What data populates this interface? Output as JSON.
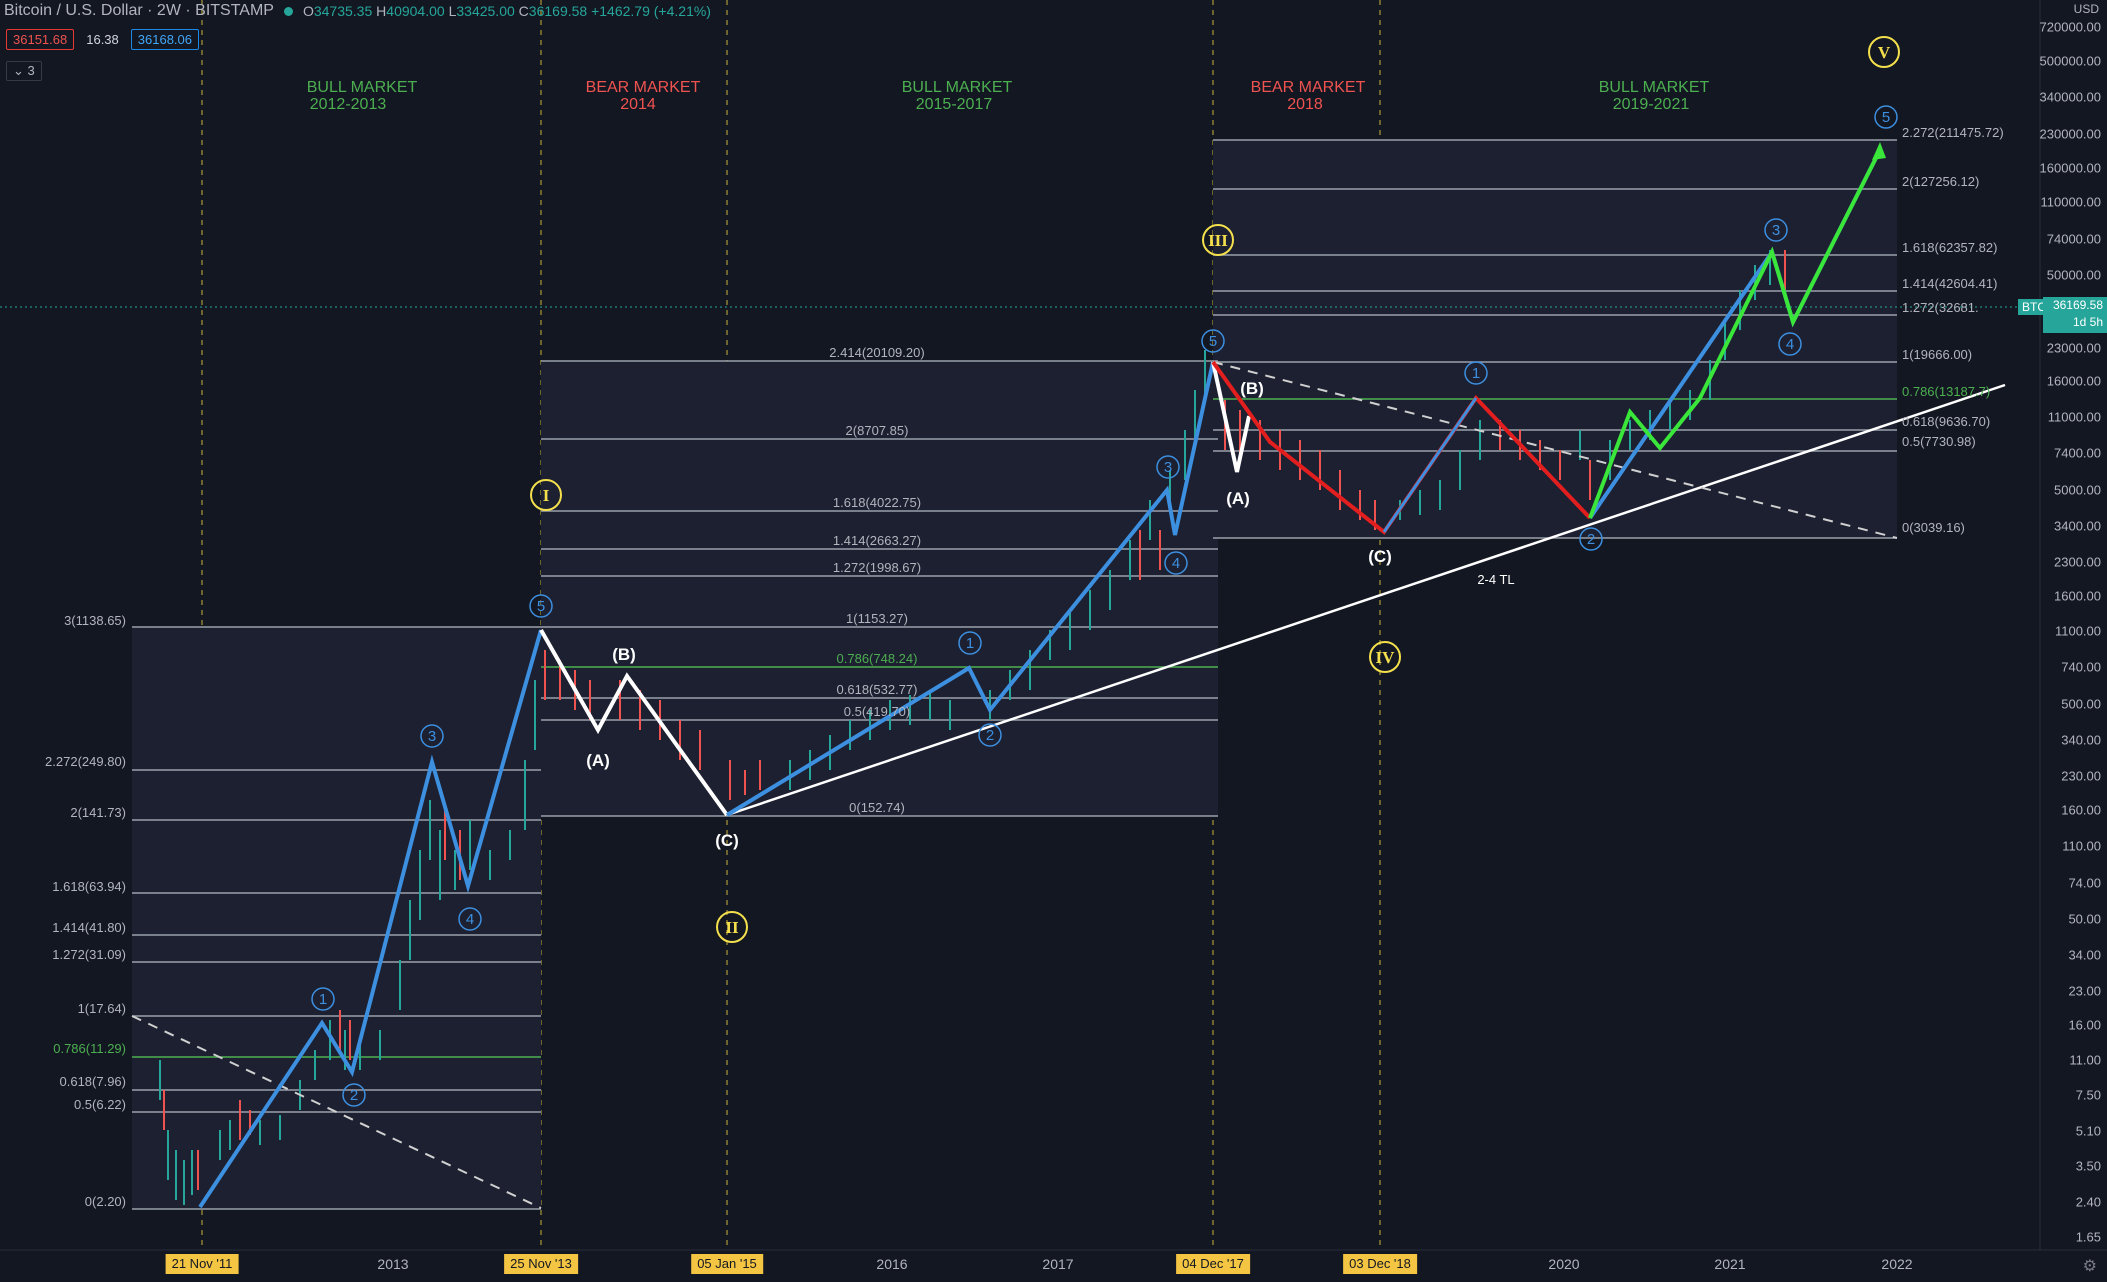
{
  "header": {
    "symbol": "Bitcoin / U.S. Dollar · 2W · BITSTAMP",
    "o_label": "O",
    "o": "34735.35",
    "h_label": "H",
    "h": "40904.00",
    "l_label": "L",
    "l": "33425.00",
    "c_label": "C",
    "c": "36169.58",
    "change": "+1462.79 (+4.21%)"
  },
  "trade": {
    "sell": "36151.68",
    "spread": "16.38",
    "buy": "36168.06"
  },
  "indicators_toggle": "3",
  "price_axis": {
    "unit": "USD",
    "labels": [
      "720000.00",
      "500000.00",
      "340000.00",
      "230000.00",
      "160000.00",
      "110000.00",
      "74000.00",
      "50000.00",
      "34000.00",
      "23000.00",
      "16000.00",
      "11000.00",
      "7400.00",
      "5000.00",
      "3400.00",
      "2300.00",
      "1600.00",
      "1100.00",
      "740.00",
      "500.00",
      "340.00",
      "230.00",
      "160.00",
      "110.00",
      "74.00",
      "50.00",
      "34.00",
      "23.00",
      "16.00",
      "11.00",
      "7.50",
      "5.10",
      "3.50",
      "2.40",
      "1.65"
    ],
    "current_price": "36169.58",
    "current_countdown": "1d 5h",
    "symbol_tag": "BTCUSD"
  },
  "time_axis": {
    "labels": [
      "2013",
      "2016",
      "2017",
      "2020",
      "2021",
      "2022"
    ],
    "highlighted_dates": [
      "21 Nov '11",
      "25 Nov '13",
      "05 Jan '15",
      "04 Dec '17",
      "03 Dec '18"
    ]
  },
  "markets": [
    {
      "line1": "BULL MARKET",
      "line2": "2012-2013",
      "kind": "bull"
    },
    {
      "line1": "BEAR MARKET",
      "line2": "2014",
      "kind": "bear"
    },
    {
      "line1": "BULL MARKET",
      "line2": "2015-2017",
      "kind": "bull"
    },
    {
      "line1": "BEAR MARKET",
      "line2": "2018",
      "kind": "bear"
    },
    {
      "line1": "BULL MARKET",
      "line2": "2019-2021",
      "kind": "bull"
    }
  ],
  "fib_sets": [
    {
      "name": "fib-2011-2013",
      "levels": [
        "3(1138.65)",
        "2.272(249.80)",
        "2(141.73)",
        "1.618(63.94)",
        "1.414(41.80)",
        "1.272(31.09)",
        "1(17.64)",
        "0.786(11.29)",
        "0.618(7.96)",
        "0.5(6.22)",
        "0(2.20)"
      ]
    },
    {
      "name": "fib-2014-2017",
      "levels": [
        "2.414(20109.20)",
        "2(8707.85)",
        "1.618(4022.75)",
        "1.414(2663.27)",
        "1.272(1998.67)",
        "1(1153.27)",
        "0.786(748.24)",
        "0.618(532.77)",
        "0.5(419.70)",
        "0(152.74)"
      ]
    },
    {
      "name": "fib-2018-2021",
      "levels": [
        "2.272(211475.72)",
        "2(127256.12)",
        "1.618(62357.82)",
        "1.414(42604.41)",
        "1.272(32681.",
        "1(19666.00)",
        "0.786(13187.7)",
        "0.618(9636.70)",
        "0.5(7730.98)",
        "0(3039.16)"
      ]
    }
  ],
  "wave_labels": {
    "motive": [
      "1",
      "2",
      "3",
      "4",
      "5"
    ],
    "corrective": [
      "(A)",
      "(B)",
      "(C)"
    ],
    "major": [
      "I",
      "II",
      "III",
      "IV",
      "V"
    ]
  },
  "annotations": {
    "trendline": "2-4 TL"
  },
  "colors": {
    "background": "#131722",
    "bull": "#4caf50",
    "bear": "#ef5350",
    "impulse": "#3d8fe0",
    "correction_white": "#ffffff",
    "correction_red": "#e31e1e",
    "projection_green": "#39e639",
    "major_wave": "#f4e04d",
    "fib_green": "#4caf50",
    "price_tag": "#26a69a"
  }
}
